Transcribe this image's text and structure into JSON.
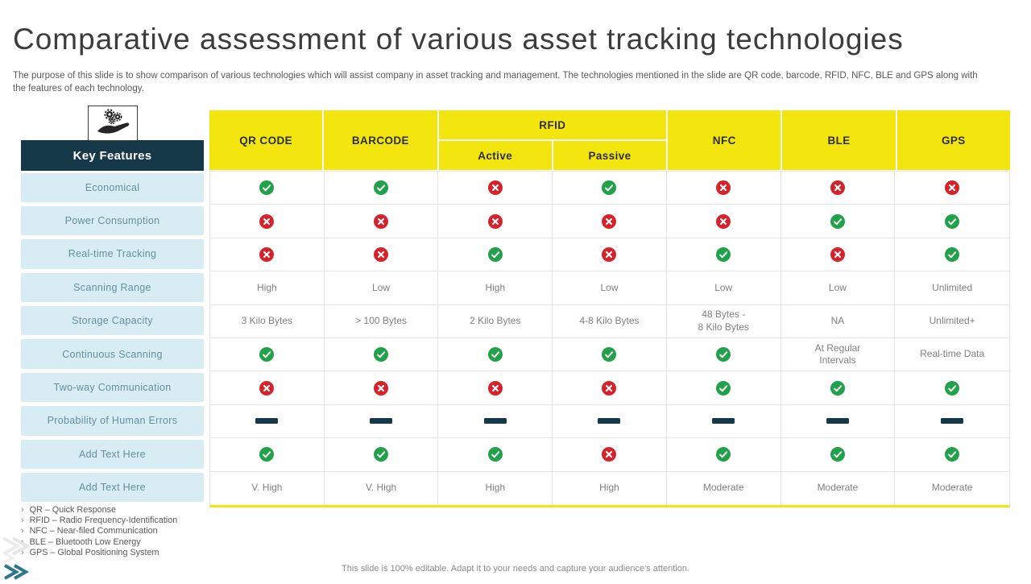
{
  "header": {
    "title": "Comparative assessment of various asset tracking technologies",
    "description": "The purpose of this slide is to show comparison of various technologies which will assist company in asset tracking and management.  The technologies mentioned in the slide are QR code, barcode, RFID,  NFC,  BLE  and GPS  along with the features of each technology."
  },
  "key_features": {
    "icon": "hand-holding-gears-icon",
    "header": "Key Features"
  },
  "table": {
    "top_headers": [
      "QR CODE",
      "BARCODE",
      "RFID",
      "NFC",
      "BLE",
      "GPS"
    ],
    "rfid_subheaders": [
      "Active",
      "Passive"
    ],
    "columns": [
      "QR CODE",
      "BARCODE",
      "RFID Active",
      "RFID Passive",
      "NFC",
      "BLE",
      "GPS"
    ],
    "rows": [
      {
        "feature": "Economical",
        "cells": [
          "check",
          "check",
          "cross",
          "check",
          "cross",
          "cross",
          "cross"
        ]
      },
      {
        "feature": "Power Consumption",
        "cells": [
          "cross",
          "cross",
          "cross",
          "cross",
          "cross",
          "check",
          "check"
        ]
      },
      {
        "feature": "Real-time Tracking",
        "cells": [
          "cross",
          "cross",
          "check",
          "cross",
          "check",
          "cross",
          "check"
        ]
      },
      {
        "feature": "Scanning Range",
        "cells": [
          "High",
          "Low",
          "High",
          "Low",
          "Low",
          "Low",
          "Unlimited"
        ]
      },
      {
        "feature": "Storage Capacity",
        "cells": [
          "3 Kilo Bytes",
          "> 100 Bytes",
          "2 Kilo Bytes",
          "4-8 Kilo Bytes",
          "48 Bytes -\n8 Kilo Bytes",
          "NA",
          "Unlimited+"
        ]
      },
      {
        "feature": "Continuous Scanning",
        "cells": [
          "check",
          "check",
          "check",
          "check",
          "check",
          "At Regular\nIntervals",
          "Real-time Data"
        ]
      },
      {
        "feature": "Two-way Communication",
        "cells": [
          "cross",
          "cross",
          "cross",
          "cross",
          "check",
          "check",
          "check"
        ]
      },
      {
        "feature": "Probability of Human Errors",
        "cells": [
          "dash",
          "dash",
          "dash",
          "dash",
          "dash",
          "dash",
          "dash"
        ]
      },
      {
        "feature": "Add Text Here",
        "cells": [
          "check",
          "check",
          "check",
          "cross",
          "check",
          "check",
          "check"
        ]
      },
      {
        "feature": "Add Text Here",
        "cells": [
          "V. High",
          "V. High",
          "High",
          "High",
          "Moderate",
          "Moderate",
          "Moderate"
        ]
      }
    ]
  },
  "legend": {
    "bullet": "›",
    "items": [
      "QR – Quick Response",
      "RFID  – Radio Frequency-Identification",
      "NFC  – Near-filed Communication",
      "BLE  – Bluetooth Low Energy",
      "GPS  – Global Positioning System"
    ]
  },
  "footer": {
    "note": "This slide is 100% editable.  Adapt it to your needs and capture your audience's attention."
  },
  "colors": {
    "header_yellow": "#F3E50E",
    "dark_teal": "#16394A",
    "row_blue": "#D8ECF4",
    "check_green": "#21A149",
    "cross_red": "#D7222A"
  }
}
